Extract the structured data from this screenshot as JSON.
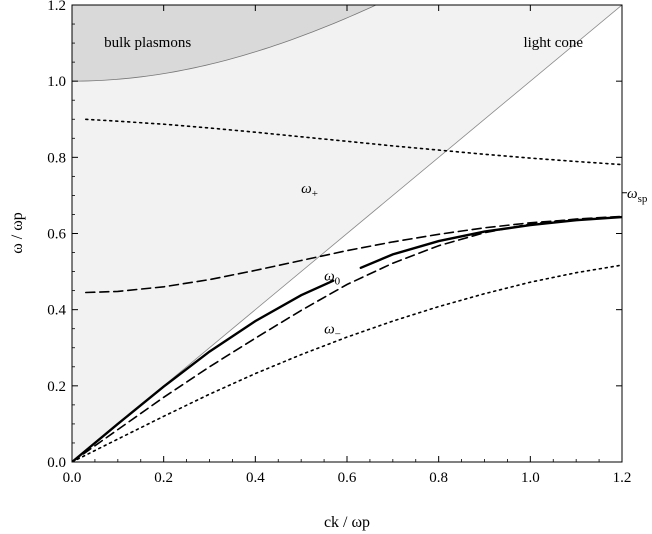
{
  "chart_data": {
    "type": "line",
    "title": "",
    "xlabel": "ck / ωp",
    "ylabel": "ω / ωp",
    "xlim": [
      0,
      1.2
    ],
    "ylim": [
      0,
      1.2
    ],
    "x_ticks": [
      "0.0",
      "0.2",
      "0.4",
      "0.6",
      "0.8",
      "1.0",
      "1.2"
    ],
    "y_ticks": [
      "0.0",
      "0.2",
      "0.4",
      "0.6",
      "0.8",
      "1.0",
      "1.2"
    ],
    "grid": false,
    "regions": [
      {
        "label": "bulk plasmons",
        "boundary": "sqrt(1 + x^2)",
        "fill": "#d9d9d9"
      },
      {
        "label": "light cone",
        "boundary": "y = x",
        "fill": "#f2f2f2"
      }
    ],
    "annotations": [
      {
        "text": "ω+",
        "x": 0.5,
        "y": 0.72
      },
      {
        "text": "ω0",
        "x": 0.55,
        "y": 0.49
      },
      {
        "text": "ω−",
        "x": 0.55,
        "y": 0.35
      },
      {
        "text": "ωsp",
        "x": 1.2,
        "y": 0.707
      }
    ],
    "series": [
      {
        "style": "dotted",
        "x": [
          0.03,
          0.1,
          0.2,
          0.3,
          0.4,
          0.5,
          0.6,
          0.7,
          0.8,
          0.9,
          1.0,
          1.1,
          1.2
        ],
        "y": [
          0.9,
          0.895,
          0.887,
          0.877,
          0.866,
          0.854,
          0.842,
          0.83,
          0.819,
          0.808,
          0.798,
          0.789,
          0.781
        ]
      },
      {
        "style": "solid",
        "x": [
          0.0,
          0.1,
          0.2,
          0.3,
          0.4,
          0.5,
          0.57
        ],
        "y": [
          0.0,
          0.1,
          0.198,
          0.29,
          0.37,
          0.438,
          0.476
        ]
      },
      {
        "style": "solid",
        "x": [
          0.63,
          0.7,
          0.8,
          0.9,
          1.0,
          1.1,
          1.2
        ],
        "y": [
          0.51,
          0.545,
          0.58,
          0.605,
          0.622,
          0.635,
          0.643
        ]
      },
      {
        "style": "dashed",
        "x": [
          0.03,
          0.1,
          0.2,
          0.3,
          0.4,
          0.5,
          0.6,
          0.7,
          0.8,
          0.9,
          1.0,
          1.1,
          1.2
        ],
        "y": [
          0.445,
          0.448,
          0.46,
          0.479,
          0.503,
          0.529,
          0.555,
          0.578,
          0.598,
          0.615,
          0.628,
          0.637,
          0.644
        ]
      },
      {
        "style": "dashed",
        "x": [
          0.0,
          0.1,
          0.2,
          0.3,
          0.4,
          0.5,
          0.6,
          0.7,
          0.8,
          0.9,
          1.0,
          1.1,
          1.2
        ],
        "y": [
          0.0,
          0.085,
          0.17,
          0.25,
          0.325,
          0.398,
          0.466,
          0.522,
          0.568,
          0.602,
          0.625,
          0.638,
          0.645
        ]
      },
      {
        "style": "dotted",
        "x": [
          0.0,
          0.1,
          0.2,
          0.3,
          0.4,
          0.5,
          0.6,
          0.7,
          0.8,
          0.9,
          1.0,
          1.1,
          1.2
        ],
        "y": [
          0.0,
          0.06,
          0.12,
          0.178,
          0.232,
          0.282,
          0.328,
          0.37,
          0.408,
          0.442,
          0.472,
          0.497,
          0.517
        ]
      }
    ]
  }
}
